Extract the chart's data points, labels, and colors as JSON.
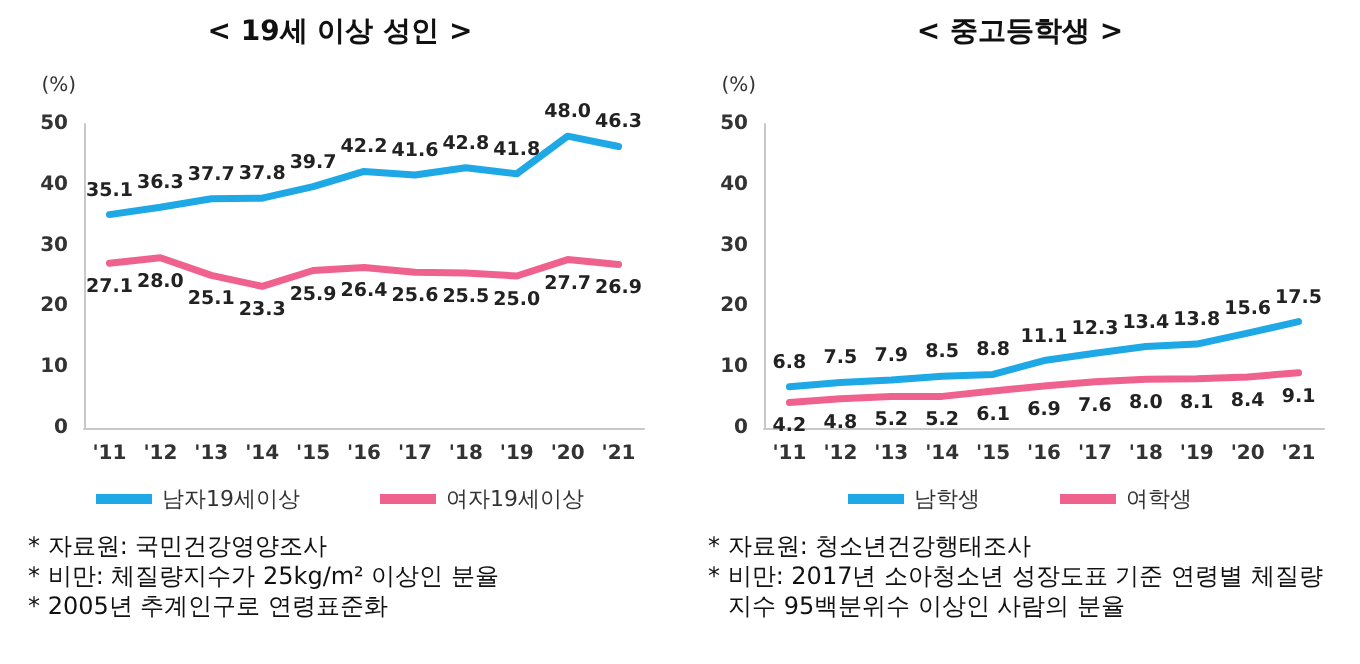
{
  "chart_data": [
    {
      "type": "line",
      "title": "< 19세 이상 성인 >",
      "ylabel": "(%)",
      "categories": [
        "'11",
        "'12",
        "'13",
        "'14",
        "'15",
        "'16",
        "'17",
        "'18",
        "'19",
        "'20",
        "'21"
      ],
      "series": [
        {
          "name": "남자19세이상",
          "color": "#1ea9e6",
          "values": [
            35.1,
            36.3,
            37.7,
            37.8,
            39.7,
            42.2,
            41.6,
            42.8,
            41.8,
            48.0,
            46.3
          ],
          "value_labels": [
            "35.1",
            "36.3",
            "37.7",
            "37.8",
            "39.7",
            "42.2",
            "41.6",
            "42.8",
            "41.8",
            "48.0",
            "46.3"
          ]
        },
        {
          "name": "여자19세이상",
          "color": "#f0628e",
          "values": [
            27.1,
            28.0,
            25.1,
            23.3,
            25.9,
            26.4,
            25.6,
            25.5,
            25.0,
            27.7,
            26.9
          ],
          "value_labels": [
            "27.1",
            "28.0",
            "25.1",
            "23.3",
            "25.9",
            "26.4",
            "25.6",
            "25.5",
            "25.0",
            "27.7",
            "26.9"
          ]
        }
      ],
      "ylim": [
        0,
        50
      ],
      "yticks": [
        0,
        10,
        20,
        30,
        40,
        50
      ],
      "grid": false,
      "legend": "bottom",
      "marker": "none",
      "line_style": "solid",
      "annotations": [
        "* 자료원: 국민건강영양조사",
        "* 비만: 체질량지수가 25kg/m² 이상인 분율",
        "* 2005년 추계인구로 연령표준화"
      ]
    },
    {
      "type": "line",
      "title": "< 중고등학생 >",
      "ylabel": "(%)",
      "categories": [
        "'11",
        "'12",
        "'13",
        "'14",
        "'15",
        "'16",
        "'17",
        "'18",
        "'19",
        "'20",
        "'21"
      ],
      "series": [
        {
          "name": "남학생",
          "color": "#1ea9e6",
          "values": [
            6.8,
            7.5,
            7.9,
            8.5,
            8.8,
            11.1,
            12.3,
            13.4,
            13.8,
            15.6,
            17.5
          ],
          "value_labels": [
            "6.8",
            "7.5",
            "7.9",
            "8.5",
            "8.8",
            "11.1",
            "12.3",
            "13.4",
            "13.8",
            "15.6",
            "17.5"
          ]
        },
        {
          "name": "여학생",
          "color": "#f0628e",
          "values": [
            4.2,
            4.8,
            5.2,
            5.2,
            6.1,
            6.9,
            7.6,
            8.0,
            8.1,
            8.4,
            9.1
          ],
          "value_labels": [
            "4.2",
            "4.8",
            "5.2",
            "5.2",
            "6.1",
            "6.9",
            "7.6",
            "8.0",
            "8.1",
            "8.4",
            "9.1"
          ]
        }
      ],
      "ylim": [
        0,
        50
      ],
      "yticks": [
        0,
        10,
        20,
        30,
        40,
        50
      ],
      "grid": false,
      "legend": "bottom",
      "marker": "none",
      "line_style": "solid",
      "annotations": [
        "* 자료원: 청소년건강행태조사",
        "* 비만: 2017년 소아청소년 성장도표 기준 연령별 체질량지수 95백분위수 이상인 사람의 분율"
      ]
    }
  ]
}
